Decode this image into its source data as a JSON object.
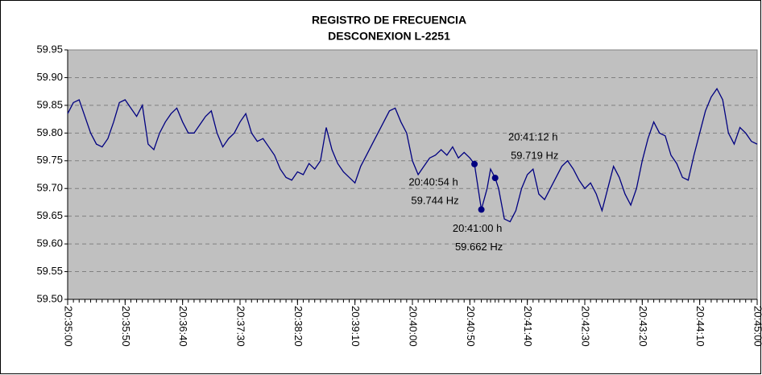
{
  "chart_data": {
    "type": "line",
    "title": "REGISTRO DE FRECUENCIA",
    "subtitle": "DESCONEXION L-2251",
    "x": [
      "20:35:00",
      "20:35:05",
      "20:35:10",
      "20:35:15",
      "20:35:20",
      "20:35:25",
      "20:35:30",
      "20:35:35",
      "20:35:40",
      "20:35:45",
      "20:35:50",
      "20:35:55",
      "20:36:00",
      "20:36:05",
      "20:36:10",
      "20:36:15",
      "20:36:20",
      "20:36:25",
      "20:36:30",
      "20:36:35",
      "20:36:40",
      "20:36:45",
      "20:36:50",
      "20:36:55",
      "20:37:00",
      "20:37:05",
      "20:37:10",
      "20:37:15",
      "20:37:20",
      "20:37:25",
      "20:37:30",
      "20:37:35",
      "20:37:40",
      "20:37:45",
      "20:37:50",
      "20:37:55",
      "20:38:00",
      "20:38:05",
      "20:38:10",
      "20:38:15",
      "20:38:20",
      "20:38:25",
      "20:38:30",
      "20:38:35",
      "20:38:40",
      "20:38:45",
      "20:38:50",
      "20:38:55",
      "20:39:00",
      "20:39:05",
      "20:39:10",
      "20:39:15",
      "20:39:20",
      "20:39:25",
      "20:39:30",
      "20:39:35",
      "20:39:40",
      "20:39:45",
      "20:39:50",
      "20:39:55",
      "20:40:00",
      "20:40:05",
      "20:40:10",
      "20:40:15",
      "20:40:20",
      "20:40:25",
      "20:40:30",
      "20:40:35",
      "20:40:40",
      "20:40:45",
      "20:40:50",
      "20:40:54",
      "20:41:00",
      "20:41:05",
      "20:41:08",
      "20:41:12",
      "20:41:15",
      "20:41:20",
      "20:41:25",
      "20:41:30",
      "20:41:35",
      "20:41:40",
      "20:41:45",
      "20:41:50",
      "20:41:55",
      "20:42:00",
      "20:42:05",
      "20:42:10",
      "20:42:15",
      "20:42:20",
      "20:42:25",
      "20:42:30",
      "20:42:35",
      "20:42:40",
      "20:42:45",
      "20:42:50",
      "20:42:55",
      "20:43:00",
      "20:43:05",
      "20:43:10",
      "20:43:15",
      "20:43:20",
      "20:43:25",
      "20:43:30",
      "20:43:35",
      "20:43:40",
      "20:43:45",
      "20:43:50",
      "20:43:55",
      "20:44:00",
      "20:44:05",
      "20:44:10",
      "20:44:15",
      "20:44:20",
      "20:44:25",
      "20:44:30",
      "20:44:35",
      "20:44:40",
      "20:44:45",
      "20:44:50",
      "20:44:55",
      "20:45:00"
    ],
    "series": [
      {
        "color": "#000080",
        "values": [
          59.835,
          59.855,
          59.86,
          59.83,
          59.8,
          59.78,
          59.775,
          59.79,
          59.82,
          59.855,
          59.86,
          59.845,
          59.83,
          59.85,
          59.78,
          59.77,
          59.8,
          59.82,
          59.835,
          59.845,
          59.82,
          59.8,
          59.8,
          59.815,
          59.83,
          59.84,
          59.8,
          59.775,
          59.79,
          59.8,
          59.82,
          59.835,
          59.8,
          59.785,
          59.79,
          59.775,
          59.76,
          59.735,
          59.72,
          59.715,
          59.73,
          59.725,
          59.745,
          59.735,
          59.75,
          59.81,
          59.77,
          59.745,
          59.73,
          59.72,
          59.71,
          59.74,
          59.76,
          59.78,
          59.8,
          59.82,
          59.84,
          59.845,
          59.82,
          59.8,
          59.75,
          59.725,
          59.74,
          59.755,
          59.76,
          59.77,
          59.76,
          59.775,
          59.755,
          59.765,
          59.755,
          59.744,
          59.662,
          59.7,
          59.735,
          59.719,
          59.7,
          59.645,
          59.64,
          59.66,
          59.7,
          59.725,
          59.735,
          59.69,
          59.68,
          59.7,
          59.72,
          59.74,
          59.75,
          59.735,
          59.715,
          59.7,
          59.71,
          59.69,
          59.66,
          59.7,
          59.74,
          59.72,
          59.69,
          59.67,
          59.7,
          59.75,
          59.79,
          59.82,
          59.8,
          59.795,
          59.76,
          59.745,
          59.72,
          59.715,
          59.76,
          59.8,
          59.84,
          59.865,
          59.88,
          59.86,
          59.8,
          59.78,
          59.81,
          59.8,
          59.785,
          59.78
        ]
      }
    ],
    "xlim": [
      "20:35:00",
      "20:45:00"
    ],
    "xticks": [
      "20:35:00",
      "20:35:50",
      "20:36:40",
      "20:37:30",
      "20:38:20",
      "20:39:10",
      "20:40:00",
      "20:40:50",
      "20:41:40",
      "20:42:30",
      "20:43:20",
      "20:44:10",
      "20:45:00"
    ],
    "ylim": [
      59.5,
      59.95
    ],
    "yticks": [
      {
        "value": 59.5,
        "label": "59.50"
      },
      59.55,
      {
        "value": 59.6,
        "label": "59.60"
      },
      59.65,
      {
        "value": 59.7,
        "label": "59.70"
      },
      59.75,
      {
        "value": 59.8,
        "label": "59.80"
      },
      59.85,
      {
        "value": 59.9,
        "label": "59.90"
      },
      59.95
    ],
    "grid": true,
    "plot_background": "#c0c0c0",
    "annotations": [
      {
        "x": "20:40:54",
        "y": 59.744,
        "time_label": "20:40:54 h",
        "value_label": "59.744 Hz"
      },
      {
        "x": "20:41:00",
        "y": 59.662,
        "time_label": "20:41:00 h",
        "value_label": "59.662 Hz"
      },
      {
        "x": "20:41:12",
        "y": 59.719,
        "time_label": "20:41:12 h",
        "value_label": "59.719 Hz"
      }
    ]
  }
}
